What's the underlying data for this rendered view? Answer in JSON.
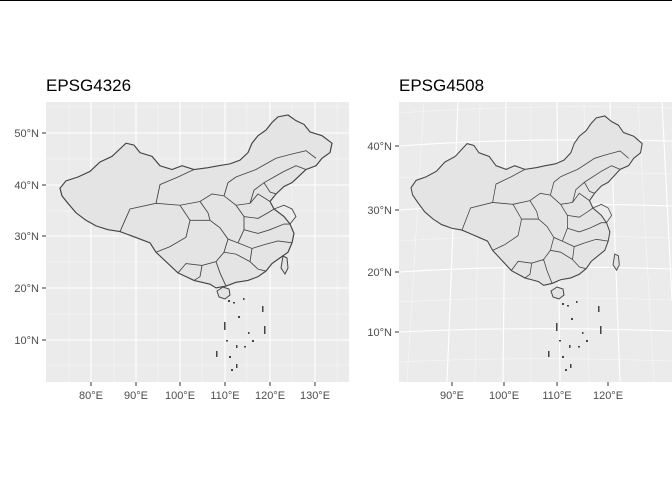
{
  "panels": [
    {
      "title": "EPSG4326",
      "y_labels": [
        "50°N",
        "40°N",
        "30°N",
        "20°N",
        "10°N"
      ],
      "x_labels": [
        "80°E",
        "90°E",
        "100°E",
        "110°E",
        "120°E",
        "130°E"
      ]
    },
    {
      "title": "EPSG4508",
      "y_labels": [
        "40°N",
        "30°N",
        "20°N",
        "10°N"
      ],
      "x_labels": [
        "90°E",
        "100°E",
        "110°E",
        "120°E"
      ]
    }
  ],
  "colors": {
    "panel_bg": "#ebebeb",
    "grid": "#ffffff",
    "map_fill": "#e4e4e4",
    "map_stroke": "#444444",
    "tick_text": "#4d4d4d"
  }
}
